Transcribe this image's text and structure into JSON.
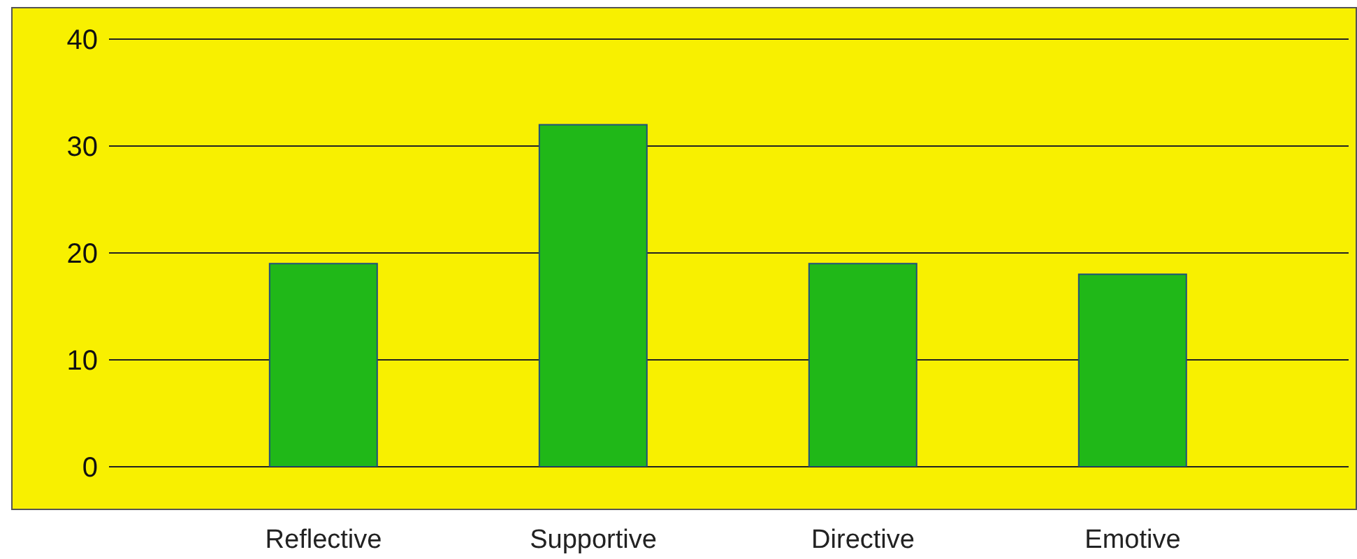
{
  "chart_data": {
    "type": "bar",
    "categories": [
      "Reflective",
      "Supportive",
      "Directive",
      "Emotive"
    ],
    "values": [
      19,
      32,
      19,
      18
    ],
    "color": "#20b818",
    "ylim": [
      0,
      40
    ],
    "yticks": [
      0,
      10,
      20,
      30,
      40
    ],
    "grid": "y"
  }
}
